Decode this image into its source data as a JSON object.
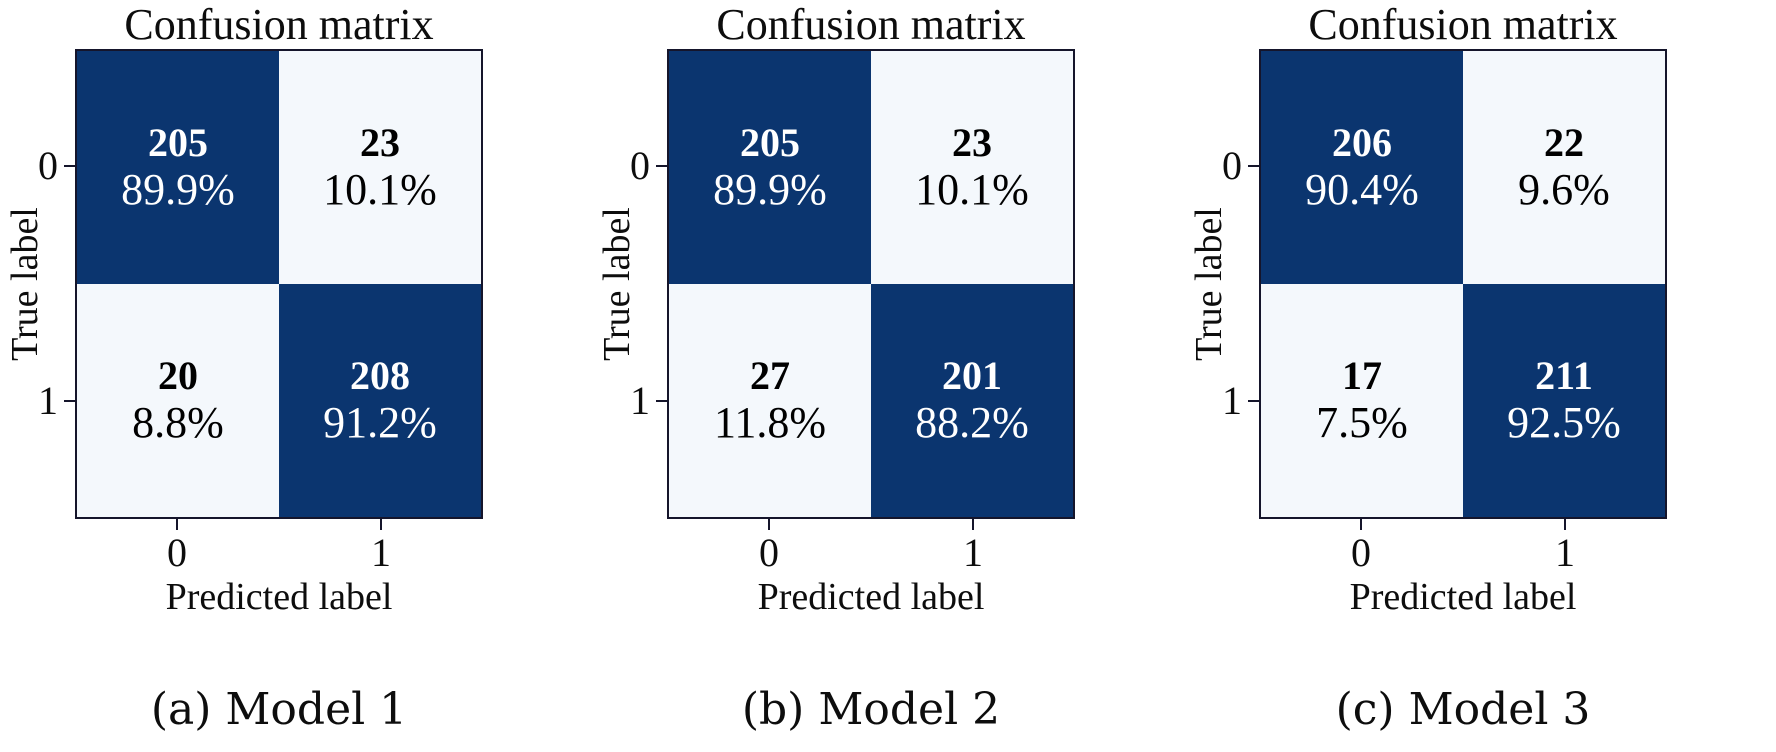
{
  "colors": {
    "cell_dark": "#0b356f",
    "cell_light": "#f4f8fc",
    "text_on_dark": "#ffffff",
    "text_on_light": "#000000",
    "axis": "#15152b",
    "background": "#ffffff"
  },
  "chart_data": [
    {
      "type": "heatmap",
      "title": "Confusion matrix",
      "xlabel": "Predicted label",
      "ylabel": "True label",
      "x_ticks": [
        "0",
        "1"
      ],
      "y_ticks": [
        "0",
        "1"
      ],
      "counts": [
        [
          205,
          23
        ],
        [
          20,
          208
        ]
      ],
      "row_percentages": [
        [
          "89.9%",
          "10.1%"
        ],
        [
          "8.8%",
          "91.2%"
        ]
      ],
      "caption": "(a) Model 1",
      "legend": "none",
      "colormap": "dark navy on diagonal, pale blue-white off diagonal"
    },
    {
      "type": "heatmap",
      "title": "Confusion matrix",
      "xlabel": "Predicted label",
      "ylabel": "True label",
      "x_ticks": [
        "0",
        "1"
      ],
      "y_ticks": [
        "0",
        "1"
      ],
      "counts": [
        [
          205,
          23
        ],
        [
          27,
          201
        ]
      ],
      "row_percentages": [
        [
          "89.9%",
          "10.1%"
        ],
        [
          "11.8%",
          "88.2%"
        ]
      ],
      "caption": "(b) Model 2",
      "legend": "none",
      "colormap": "dark navy on diagonal, pale blue-white off diagonal"
    },
    {
      "type": "heatmap",
      "title": "Confusion matrix",
      "xlabel": "Predicted label",
      "ylabel": "True label",
      "x_ticks": [
        "0",
        "1"
      ],
      "y_ticks": [
        "0",
        "1"
      ],
      "counts": [
        [
          206,
          22
        ],
        [
          17,
          211
        ]
      ],
      "row_percentages": [
        [
          "90.4%",
          "9.6%"
        ],
        [
          "7.5%",
          "92.5%"
        ]
      ],
      "caption": "(c) Model 3",
      "legend": "none",
      "colormap": "dark navy on diagonal, pale blue-white off diagonal"
    }
  ]
}
